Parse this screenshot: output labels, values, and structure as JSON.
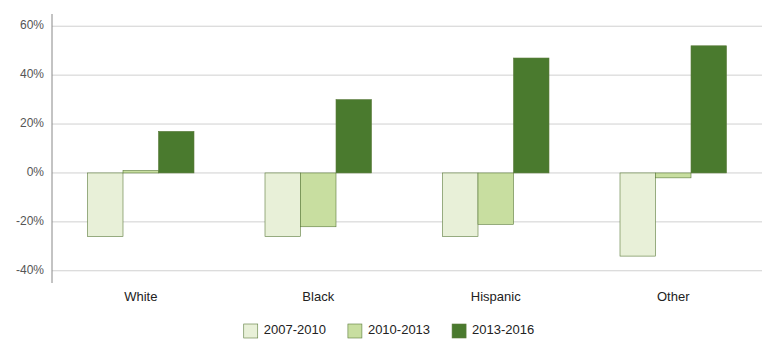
{
  "chart_data": {
    "type": "bar",
    "categories": [
      "White",
      "Black",
      "Hispanic",
      "Other"
    ],
    "series": [
      {
        "name": "2007-2010",
        "color": "#e8f0d8",
        "values": [
          -26,
          -26,
          -26,
          -34
        ]
      },
      {
        "name": "2010-2013",
        "color": "#c8dea0",
        "values": [
          1,
          -22,
          -21,
          -2
        ]
      },
      {
        "name": "2013-2016",
        "color": "#4a7a2e",
        "values": [
          17,
          30,
          47,
          52
        ]
      }
    ],
    "ylim": [
      -45,
      65
    ],
    "yticks": [
      {
        "value": -40,
        "label": "-40%"
      },
      {
        "value": -20,
        "label": "-20%"
      },
      {
        "value": 0,
        "label": "0%"
      },
      {
        "value": 20,
        "label": "20%"
      },
      {
        "value": 40,
        "label": "40%"
      },
      {
        "value": 60,
        "label": "60%"
      }
    ],
    "grid": true,
    "legend": "bottom"
  }
}
